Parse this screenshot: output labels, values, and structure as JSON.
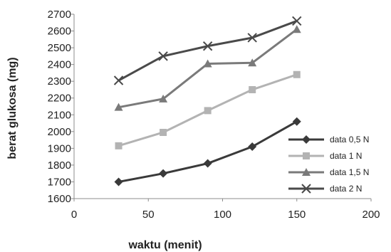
{
  "chart_data": {
    "type": "line",
    "title": "",
    "xlabel": "waktu (menit)",
    "ylabel": "berat glukosa (mg)",
    "xlim": [
      0,
      200
    ],
    "ylim": [
      1600,
      2700
    ],
    "x_ticks": [
      0,
      50,
      100,
      150,
      200
    ],
    "y_ticks": [
      1600,
      1700,
      1800,
      1900,
      2000,
      2100,
      2200,
      2300,
      2400,
      2500,
      2600,
      2700
    ],
    "grid": false,
    "legend_position": "bottom-right",
    "x": [
      30,
      60,
      90,
      120,
      150
    ],
    "series": [
      {
        "name": "data 0,5 N",
        "values": [
          1700,
          1750,
          1810,
          1910,
          2060
        ],
        "color": "#3a3a3a",
        "marker": "diamond"
      },
      {
        "name": "data 1 N",
        "values": [
          1915,
          1995,
          2125,
          2250,
          2340
        ],
        "color": "#b3b3b3",
        "marker": "square"
      },
      {
        "name": "data 1,5 N",
        "values": [
          2145,
          2195,
          2405,
          2410,
          2610
        ],
        "color": "#7a7a7a",
        "marker": "triangle"
      },
      {
        "name": "data 2 N",
        "values": [
          2305,
          2450,
          2510,
          2560,
          2660
        ],
        "color": "#4a4a4a",
        "marker": "x"
      }
    ]
  }
}
